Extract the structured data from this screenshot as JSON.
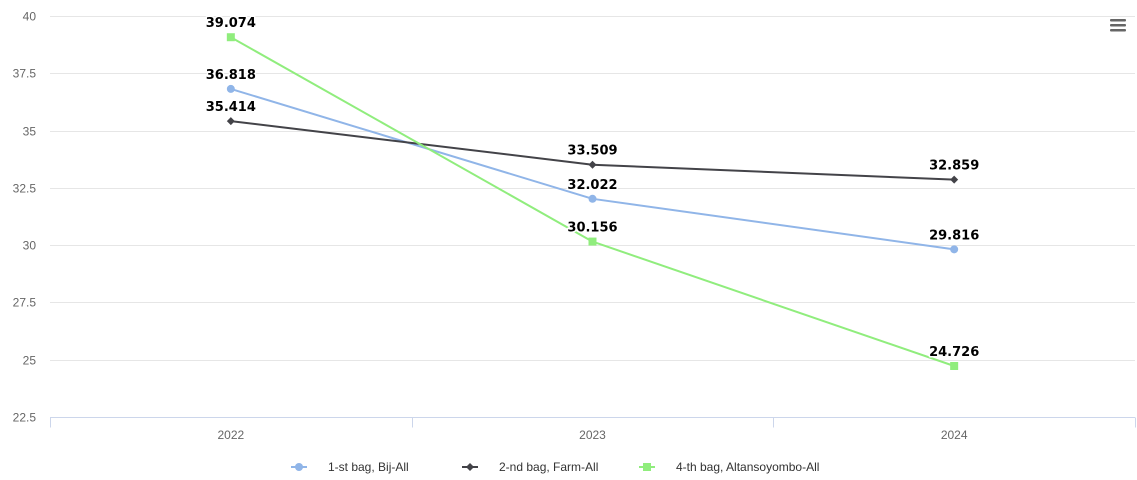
{
  "chart_data": {
    "type": "line",
    "title": "",
    "xlabel": "",
    "ylabel": "",
    "categories": [
      "2022",
      "2023",
      "2024"
    ],
    "ylim": [
      22.5,
      40
    ],
    "yticks": [
      "22.5",
      "25",
      "27.5",
      "30",
      "32.5",
      "35",
      "37.5",
      "40"
    ],
    "grid": true,
    "legend_position": "bottom-center",
    "series": [
      {
        "name": "1-st bag, Bij-All",
        "color": "#90b5e8",
        "marker": "circle",
        "values": [
          36.818,
          32.022,
          29.816
        ],
        "labels": [
          "36.818",
          "32.022",
          "29.816"
        ]
      },
      {
        "name": "2-nd bag, Farm-All",
        "color": "#434348",
        "marker": "diamond",
        "values": [
          35.414,
          33.509,
          32.859
        ],
        "labels": [
          "35.414",
          "33.509",
          "32.859"
        ]
      },
      {
        "name": "4-th bag, Altansoyombo-All",
        "color": "#90ed7d",
        "marker": "square",
        "values": [
          39.074,
          30.156,
          24.726
        ],
        "labels": [
          "39.074",
          "30.156",
          "24.726"
        ]
      }
    ]
  },
  "toolbar": {
    "menu_icon": "hamburger-menu-icon"
  }
}
